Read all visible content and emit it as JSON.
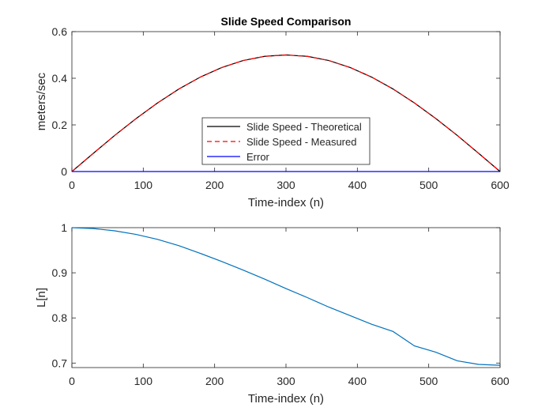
{
  "chart_data": [
    {
      "type": "line",
      "title": "Slide Speed Comparison",
      "xlabel": "Time-index (n)",
      "ylabel": "meters/sec",
      "xlim": [
        0,
        600
      ],
      "ylim": [
        0,
        0.6
      ],
      "xticks": [
        0,
        100,
        200,
        300,
        400,
        500,
        600
      ],
      "yticks": [
        0,
        0.2,
        0.4,
        0.6
      ],
      "ytick_labels": [
        "0",
        "0.2",
        "0.4",
        "0.6"
      ],
      "grid": false,
      "legend_position": "bottom-center",
      "x": [
        0,
        30,
        60,
        90,
        120,
        150,
        180,
        210,
        240,
        270,
        300,
        330,
        360,
        390,
        420,
        450,
        480,
        510,
        540,
        570,
        600
      ],
      "series": [
        {
          "name": "Slide Speed - Theoretical",
          "color": "#000000",
          "style": "solid",
          "values": [
            0,
            0.078,
            0.155,
            0.227,
            0.294,
            0.354,
            0.405,
            0.446,
            0.476,
            0.494,
            0.5,
            0.494,
            0.476,
            0.446,
            0.405,
            0.354,
            0.294,
            0.227,
            0.155,
            0.078,
            0
          ]
        },
        {
          "name": "Slide Speed - Measured",
          "color": "#ff0000",
          "style": "dashed",
          "values": [
            0,
            0.078,
            0.155,
            0.227,
            0.294,
            0.354,
            0.405,
            0.446,
            0.476,
            0.494,
            0.5,
            0.494,
            0.476,
            0.446,
            0.405,
            0.354,
            0.294,
            0.227,
            0.155,
            0.078,
            0
          ]
        },
        {
          "name": "Error",
          "color": "#0000ff",
          "style": "solid",
          "values": [
            0,
            0,
            0,
            0,
            0,
            0,
            0,
            0,
            0,
            0,
            0,
            0,
            0,
            0,
            0,
            0,
            0,
            0,
            0,
            0,
            0
          ]
        }
      ]
    },
    {
      "type": "line",
      "title": "",
      "xlabel": "Time-index (n)",
      "ylabel": "L[n]",
      "xlim": [
        0,
        600
      ],
      "ylim": [
        0.69,
        1.0
      ],
      "xticks": [
        0,
        100,
        200,
        300,
        400,
        500,
        600
      ],
      "yticks": [
        0.7,
        0.8,
        0.9,
        1.0
      ],
      "ytick_labels": [
        "0.7",
        "0.8",
        "0.9",
        "1"
      ],
      "grid": false,
      "x": [
        0,
        30,
        60,
        90,
        120,
        150,
        180,
        210,
        240,
        270,
        300,
        330,
        360,
        390,
        420,
        450,
        480,
        510,
        540,
        570,
        600
      ],
      "series": [
        {
          "color": "#0072bd",
          "style": "solid",
          "values": [
            1.0,
            0.998,
            0.993,
            0.985,
            0.974,
            0.96,
            0.943,
            0.925,
            0.906,
            0.886,
            0.865,
            0.845,
            0.824,
            0.805,
            0.786,
            0.77,
            0.738,
            0.724,
            0.705,
            0.697,
            0.695
          ]
        }
      ]
    }
  ]
}
